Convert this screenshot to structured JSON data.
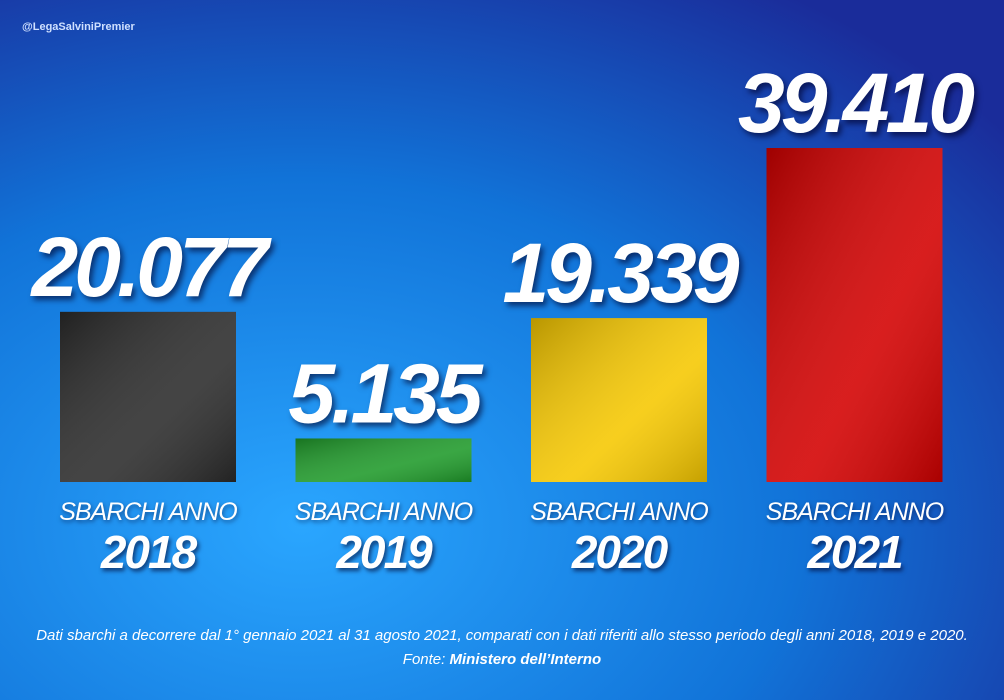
{
  "chart_data": {
    "type": "bar",
    "watermark": "@LegaSalviniPremier",
    "category_label": "SBARCHI ANNO",
    "categories": [
      "2018",
      "2019",
      "2020",
      "2021"
    ],
    "values": [
      20077,
      5135,
      19339,
      39410
    ],
    "value_labels": [
      "20.077",
      "5.135",
      "19.339",
      "39.410"
    ],
    "colors": [
      "#2b2b2b",
      "#1f9a2a",
      "#f6c800",
      "#d30000"
    ],
    "note": "Dati sbarchi a decorrere dal 1° gennaio 2021 al 31 agosto 2021, comparati con i dati riferiti allo stesso periodo degli anni 2018, 2019 e 2020.",
    "source_label": "Fonte:",
    "source": "Ministero dell’Interno"
  }
}
